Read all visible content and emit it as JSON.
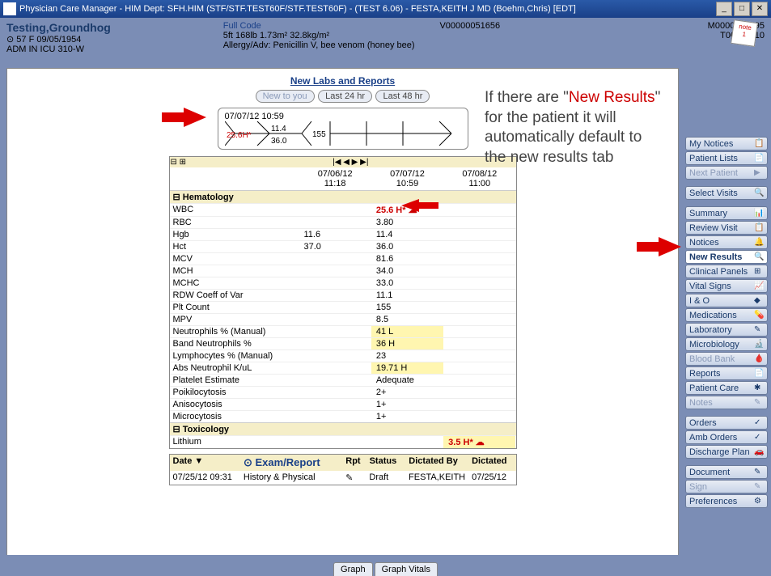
{
  "window": {
    "title": "Physician Care Manager - HIM Dept: SFH.HIM (STF/STF.TEST60F/STF.TEST60F) - (TEST 6.06) - FESTA,KEITH J MD (Boehm,Chris) [EDT]"
  },
  "patient": {
    "name": "Testing,Groundhog",
    "demo": "⊙  57  F  09/05/1954",
    "location": "ADM IN  ICU  310-W",
    "code": "Full Code",
    "vitals": "5ft  168lb  1.73m²  32.8kg/m²",
    "allergy": "Allergy/Adv: Penicillin V, bee venom (honey bee)",
    "vnum": "V00000051656",
    "mnum": "M0000002795",
    "tnum": "T00003110"
  },
  "section": {
    "title": "New Labs and Reports"
  },
  "tabs": {
    "a": "New to you",
    "b": "Last 24 hr",
    "c": "Last 48 hr"
  },
  "fish": {
    "ts": "07/07/12 10:59",
    "v1": "25.6H*",
    "v2": "11.4",
    "v3": "36.0",
    "v4": "155"
  },
  "cols": {
    "c1": "07/06/12",
    "c1t": "11:18",
    "c2": "07/07/12",
    "c2t": "10:59",
    "c3": "07/08/12",
    "c3t": "11:00"
  },
  "cats": {
    "hem": "Hematology",
    "tox": "Toxicology"
  },
  "rows": [
    {
      "n": "WBC",
      "c1": "",
      "c2": "25.6  H* ☁",
      "c3": "",
      "hl": false,
      "ab": true
    },
    {
      "n": "RBC",
      "c1": "",
      "c2": "3.80",
      "c3": ""
    },
    {
      "n": "Hgb",
      "c1": "11.6",
      "c2": "11.4",
      "c3": ""
    },
    {
      "n": "Hct",
      "c1": "37.0",
      "c2": "36.0",
      "c3": ""
    },
    {
      "n": "MCV",
      "c1": "",
      "c2": "81.6",
      "c3": ""
    },
    {
      "n": "MCH",
      "c1": "",
      "c2": "34.0",
      "c3": ""
    },
    {
      "n": "MCHC",
      "c1": "",
      "c2": "33.0",
      "c3": ""
    },
    {
      "n": "RDW Coeff of Var",
      "c1": "",
      "c2": "11.1",
      "c3": ""
    },
    {
      "n": "Plt Count",
      "c1": "",
      "c2": "155",
      "c3": ""
    },
    {
      "n": "MPV",
      "c1": "",
      "c2": "8.5",
      "c3": ""
    },
    {
      "n": "Neutrophils % (Manual)",
      "c1": "",
      "c2": "41  L",
      "c3": "",
      "hl": true
    },
    {
      "n": "Band Neutrophils %",
      "c1": "",
      "c2": "36  H",
      "c3": "",
      "hl": true
    },
    {
      "n": "Lymphocytes % (Manual)",
      "c1": "",
      "c2": "23",
      "c3": ""
    },
    {
      "n": "Abs Neutrophil K/uL",
      "c1": "",
      "c2": "19.71  H",
      "c3": "",
      "hl": true
    },
    {
      "n": "Platelet Estimate",
      "c1": "",
      "c2": "Adequate",
      "c3": ""
    },
    {
      "n": "Poikilocytosis",
      "c1": "",
      "c2": "2+",
      "c3": ""
    },
    {
      "n": "Anisocytosis",
      "c1": "",
      "c2": "1+",
      "c3": ""
    },
    {
      "n": "Microcytosis",
      "c1": "",
      "c2": "1+",
      "c3": ""
    }
  ],
  "tox": {
    "n": "Lithium",
    "c3": "3.5  H* ☁",
    "hl": true,
    "ab": true
  },
  "exam": {
    "h1": "Date ▼",
    "h2": "⊙ Exam/Report",
    "h3": "Rpt",
    "h4": "Status",
    "h5": "Dictated By",
    "h6": "Dictated",
    "d": "07/25/12 09:31",
    "e": "History & Physical",
    "r": "✎",
    "s": "Draft",
    "by": "FESTA,KEITH",
    "dt": "07/25/12"
  },
  "sidebar": [
    {
      "t": "My Notices",
      "i": "📋"
    },
    {
      "t": "Patient Lists",
      "i": "📄"
    },
    {
      "t": "Next Patient",
      "i": "▶",
      "dim": true
    },
    {
      "gap": true
    },
    {
      "t": "Select Visits",
      "i": "🔍"
    },
    {
      "gap": true
    },
    {
      "t": "Summary",
      "i": "📊"
    },
    {
      "t": "Review Visit",
      "i": "📋"
    },
    {
      "t": "Notices",
      "i": "🔔"
    },
    {
      "t": "New Results",
      "i": "🔍",
      "sel": true
    },
    {
      "t": "Clinical Panels",
      "i": "⊞"
    },
    {
      "t": "Vital Signs",
      "i": "📈"
    },
    {
      "t": "I & O",
      "i": "◆"
    },
    {
      "t": "Medications",
      "i": "💊"
    },
    {
      "t": "Laboratory",
      "i": "✎"
    },
    {
      "t": "Microbiology",
      "i": "🔬"
    },
    {
      "t": "Blood Bank",
      "i": "🩸",
      "dim": true
    },
    {
      "t": "Reports",
      "i": "📄"
    },
    {
      "t": "Patient Care",
      "i": "✱"
    },
    {
      "t": "Notes",
      "i": "✎",
      "dim": true
    },
    {
      "gap": true
    },
    {
      "t": "Orders",
      "i": "✓"
    },
    {
      "t": "Amb Orders",
      "i": "✓"
    },
    {
      "t": "Discharge Plan",
      "i": "🚗"
    },
    {
      "gap": true
    },
    {
      "t": "Document",
      "i": "✎"
    },
    {
      "t": "Sign",
      "i": "✎",
      "dim": true
    },
    {
      "t": "Preferences",
      "i": "⚙"
    }
  ],
  "footer": {
    "a": "Graph",
    "b": "Graph Vitals"
  },
  "annot": {
    "l1": "If there are \"",
    "l2": "New Results",
    "l3": "\" for the patient it will automatically default to the new results tab"
  }
}
